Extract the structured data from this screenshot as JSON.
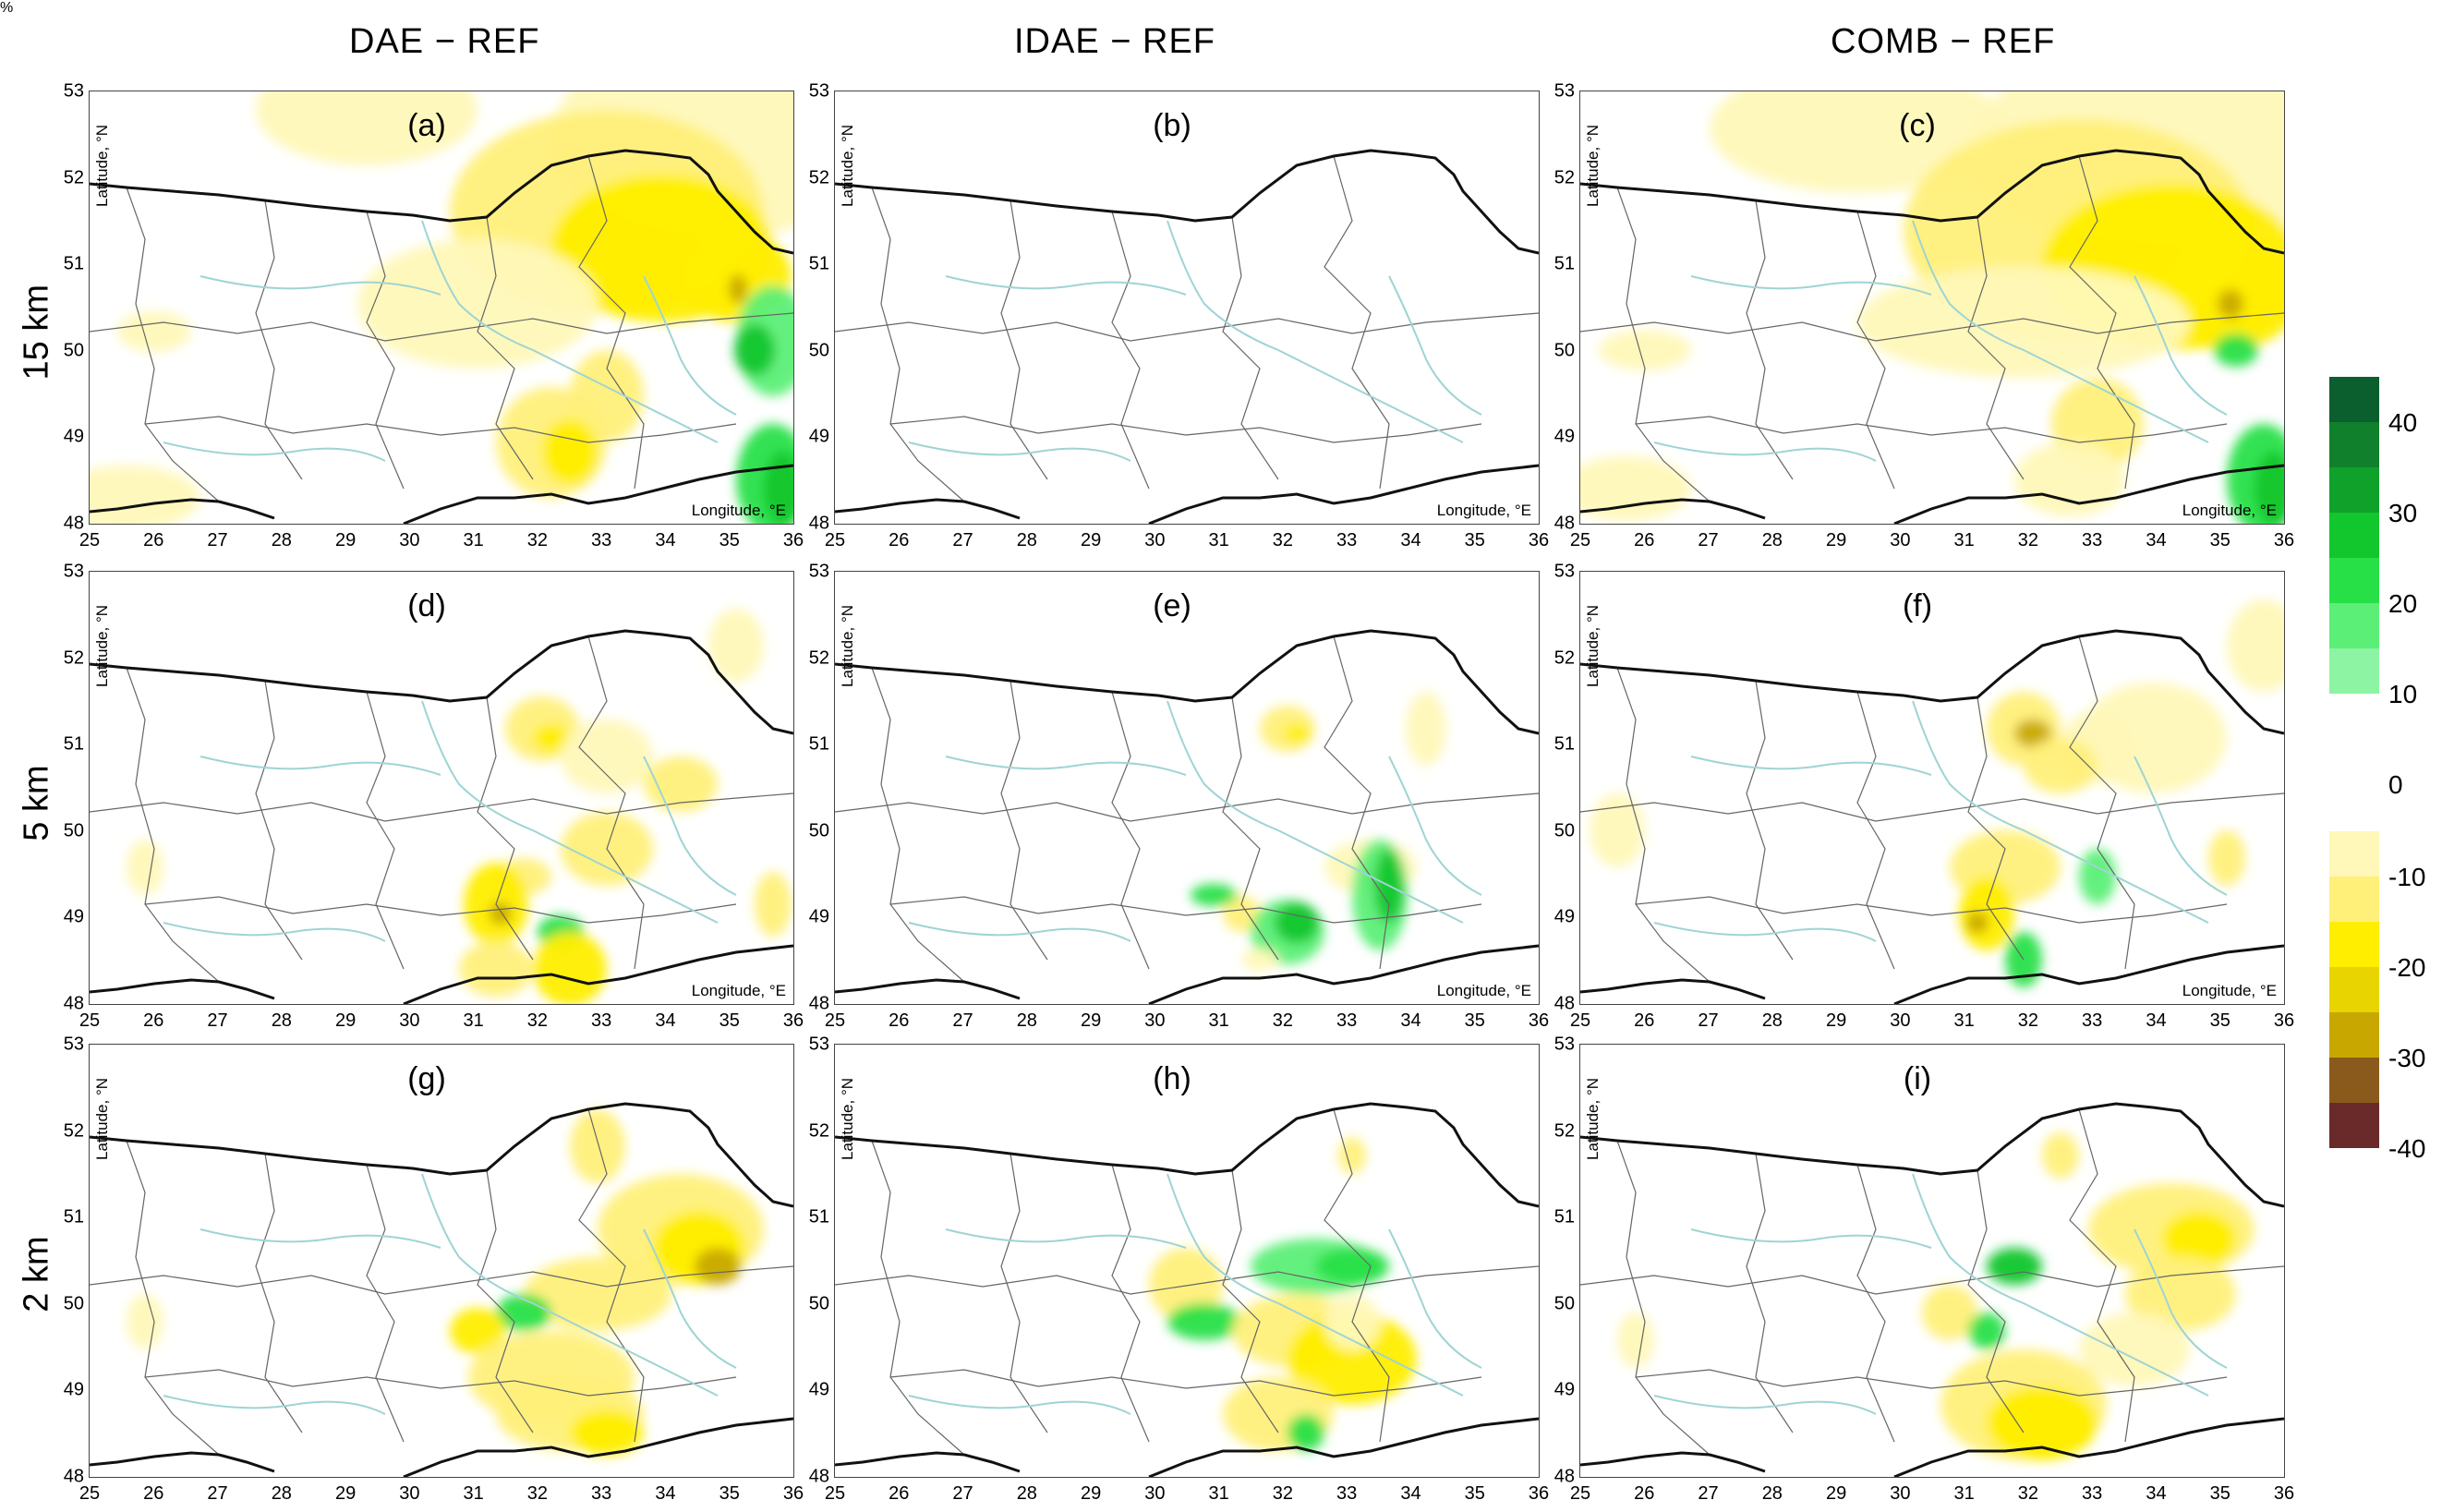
{
  "columns": [
    "DAE − REF",
    "IDAE − REF",
    "COMB − REF"
  ],
  "rows": [
    "15 km",
    "5 km",
    "2 km"
  ],
  "panels": [
    "(a)",
    "(b)",
    "(c)",
    "(d)",
    "(e)",
    "(f)",
    "(g)",
    "(h)",
    "(i)"
  ],
  "axes": {
    "lat_title": "Latitude, °N",
    "lon_title": "Longitude, °E",
    "lat_ticks": [
      "53",
      "52",
      "51",
      "50",
      "49",
      "48"
    ],
    "lon_ticks": [
      "25",
      "26",
      "27",
      "28",
      "29",
      "30",
      "31",
      "32",
      "33",
      "34",
      "35",
      "36"
    ]
  },
  "legend": {
    "unit": "%",
    "positive_labels": [
      "40",
      "30",
      "20",
      "10"
    ],
    "negative_labels": [
      "0",
      "-10",
      "-20",
      "-30",
      "-40"
    ],
    "positive_colors": [
      "#0b5e2e",
      "#11802c",
      "#0fa12a",
      "#12c62d",
      "#27e048",
      "#5cef77",
      "#8cf4a3"
    ],
    "negative_colors": [
      "#fff8b8",
      "#fff07a",
      "#ffee00",
      "#e8d400",
      "#c8a800",
      "#8a5a1c",
      "#6a2a2a"
    ]
  }
}
